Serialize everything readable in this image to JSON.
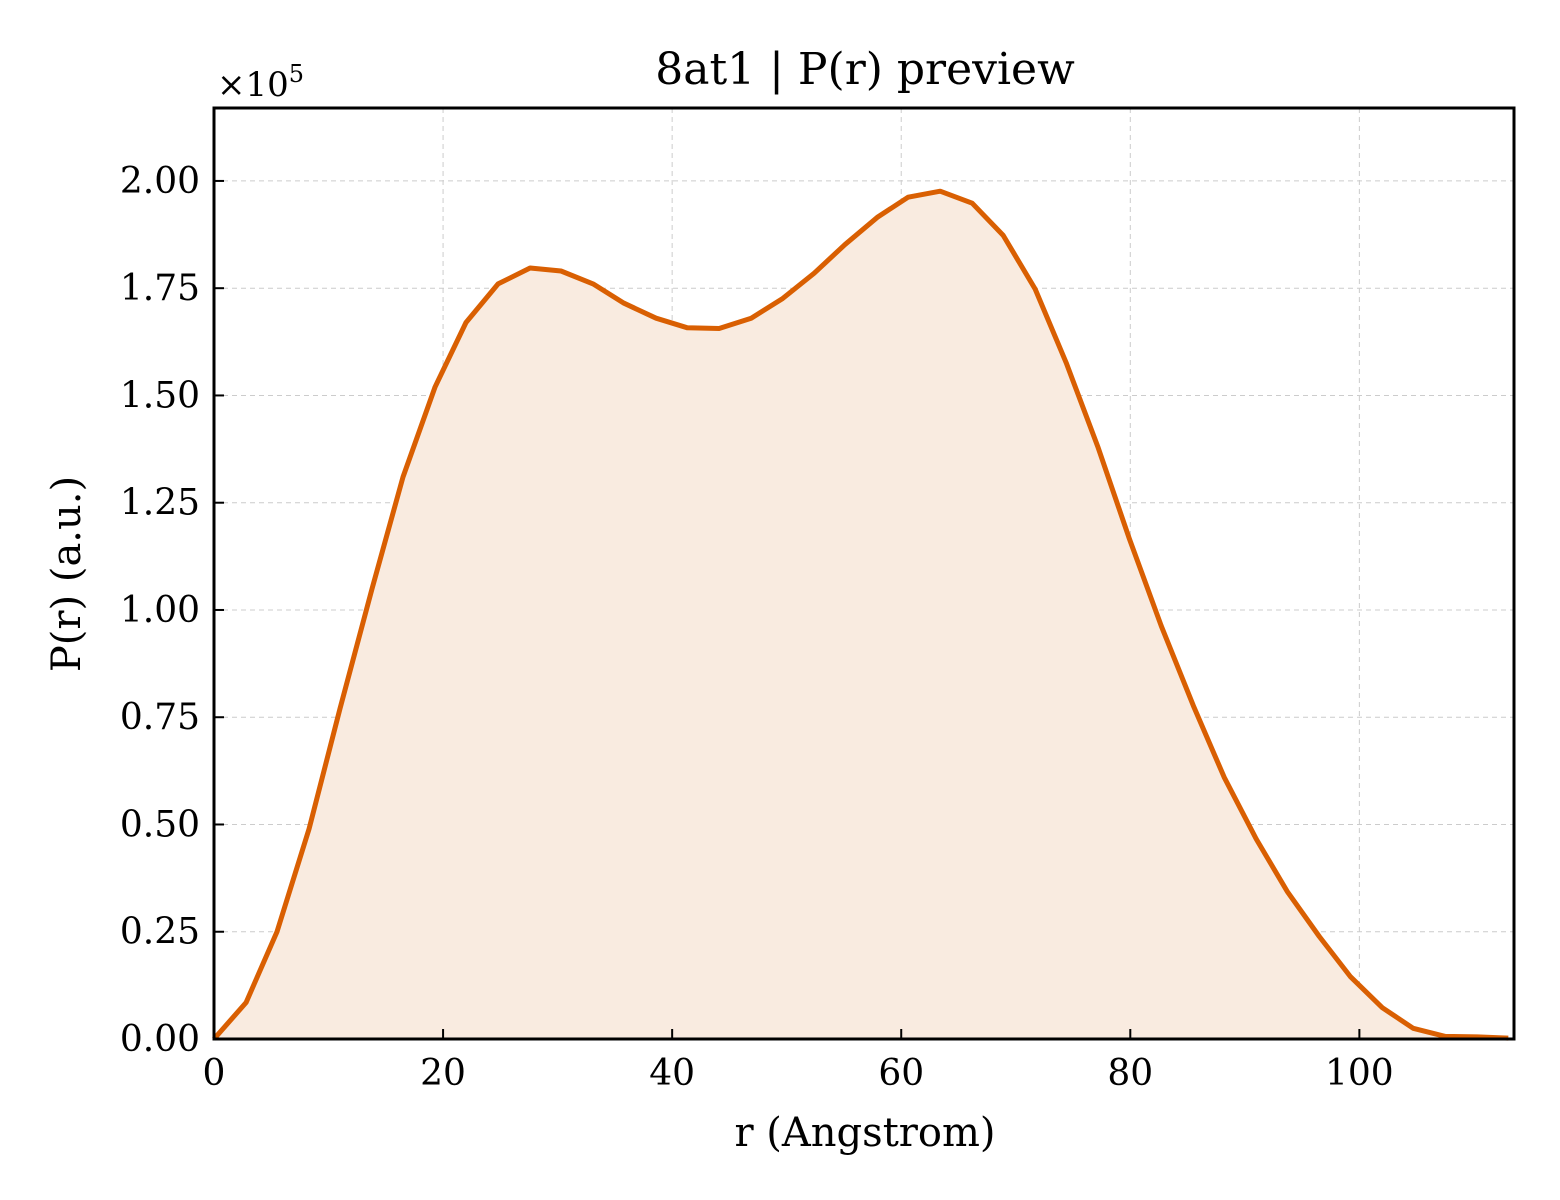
{
  "chart_data": {
    "type": "area",
    "title": "8at1 | P(r) preview",
    "xlabel": "r (Angstrom)",
    "ylabel": "P(r) (a.u.)",
    "y_offset_label": "×10",
    "y_offset_exponent": "5",
    "xlim": [
      0,
      113.5
    ],
    "ylim": [
      0,
      2.17
    ],
    "x_ticks": [
      0,
      20,
      40,
      60,
      80,
      100
    ],
    "x_tick_labels": [
      "0",
      "20",
      "40",
      "60",
      "80",
      "100"
    ],
    "y_ticks": [
      0,
      0.25,
      0.5,
      0.75,
      1.0,
      1.25,
      1.5,
      1.75,
      2.0
    ],
    "y_tick_labels": [
      "0.00",
      "0.25",
      "0.50",
      "0.75",
      "1.00",
      "1.25",
      "1.50",
      "1.75",
      "2.00"
    ],
    "grid": true,
    "line_color": "#d95f02",
    "fill_color": "#f9ebe0",
    "series": [
      {
        "x": [
          0,
          2.8,
          5.5,
          8.3,
          11.0,
          13.8,
          16.5,
          19.3,
          22.0,
          24.8,
          27.6,
          30.3,
          33.1,
          35.8,
          38.6,
          41.3,
          44.1,
          46.9,
          49.6,
          52.4,
          55.1,
          57.9,
          60.6,
          63.4,
          66.2,
          68.9,
          71.7,
          74.4,
          77.2,
          79.9,
          82.7,
          85.5,
          88.2,
          91.0,
          93.7,
          96.5,
          99.2,
          102.0,
          104.7,
          107.5,
          110.3,
          113.0
        ],
        "values": [
          0.0,
          0.085,
          0.25,
          0.49,
          0.77,
          1.05,
          1.31,
          1.52,
          1.67,
          1.76,
          1.797,
          1.79,
          1.76,
          1.715,
          1.68,
          1.658,
          1.656,
          1.68,
          1.725,
          1.785,
          1.852,
          1.915,
          1.962,
          1.976,
          1.948,
          1.873,
          1.748,
          1.576,
          1.378,
          1.167,
          0.963,
          0.777,
          0.61,
          0.466,
          0.344,
          0.239,
          0.146,
          0.073,
          0.025,
          0.006,
          0.005,
          0.002
        ]
      }
    ]
  }
}
